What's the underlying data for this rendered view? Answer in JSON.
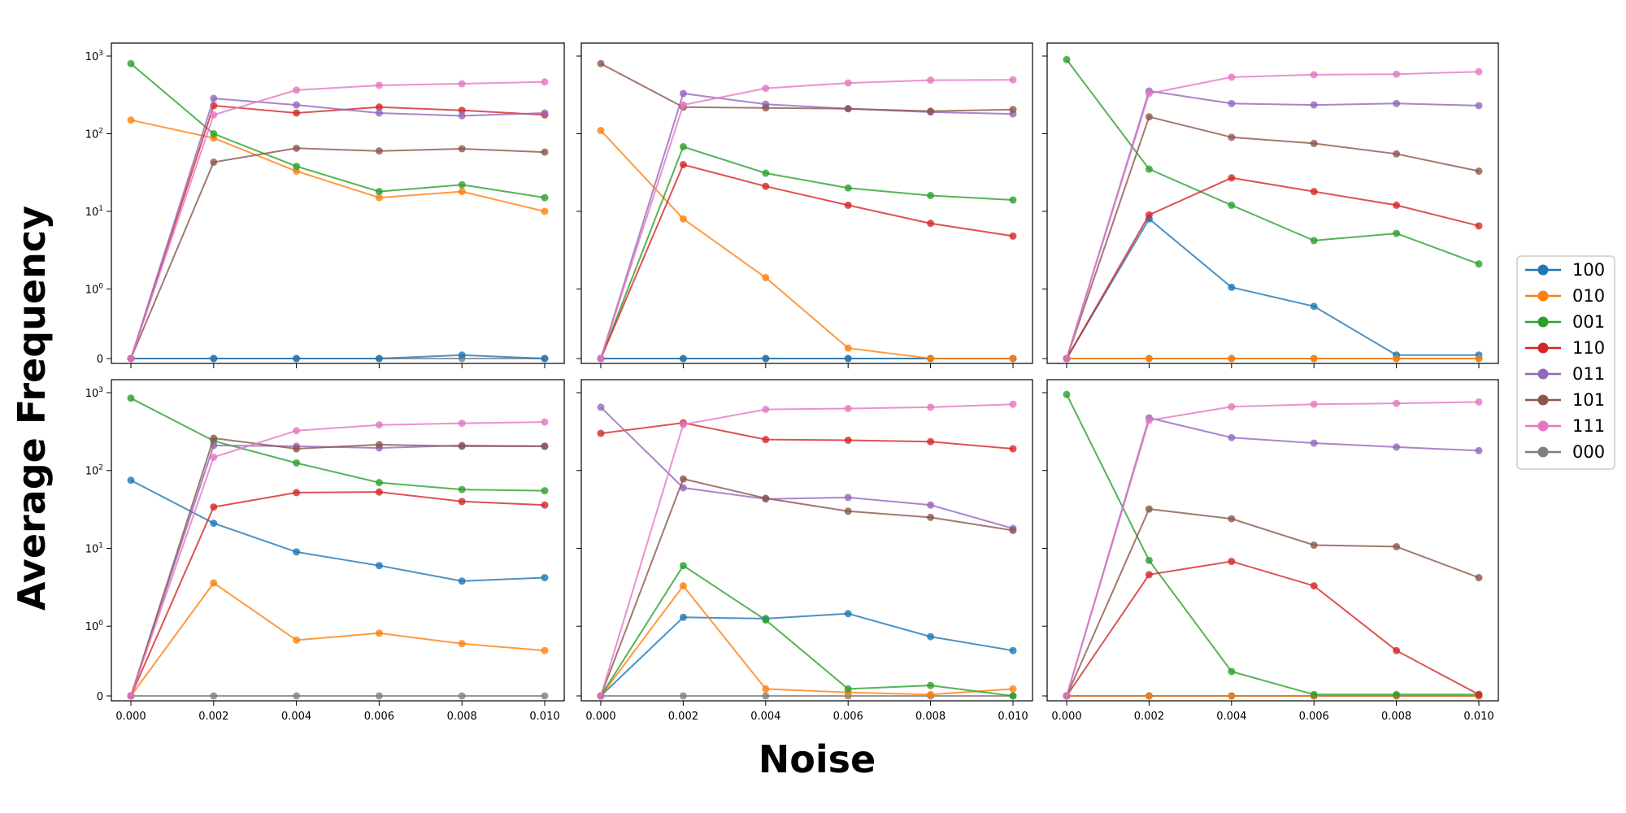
{
  "figure": {
    "ylabel": "Average Frequency",
    "xlabel": "Noise"
  },
  "chart_data": {
    "type": "line",
    "yscale": "symlog",
    "ylim": [
      0,
      1000
    ],
    "xlim": [
      0.0,
      0.01
    ],
    "x": [
      0.0,
      0.002,
      0.004,
      0.006,
      0.008,
      0.01
    ],
    "x_tick_labels": [
      "0.000",
      "0.002",
      "0.004",
      "0.006",
      "0.008",
      "0.010"
    ],
    "y_ticks": [
      {
        "value": 0,
        "base": "0",
        "exp": ""
      },
      {
        "value": 1,
        "base": "10",
        "exp": "0"
      },
      {
        "value": 10,
        "base": "10",
        "exp": "1"
      },
      {
        "value": 100,
        "base": "10",
        "exp": "2"
      },
      {
        "value": 1000,
        "base": "10",
        "exp": "3"
      }
    ],
    "grid": false,
    "legend": {
      "placement": "right",
      "entries": [
        {
          "name": "100",
          "color": "#1f77b4"
        },
        {
          "name": "010",
          "color": "#ff7f0e"
        },
        {
          "name": "001",
          "color": "#2ca02c"
        },
        {
          "name": "110",
          "color": "#d62728"
        },
        {
          "name": "011",
          "color": "#9467bd"
        },
        {
          "name": "101",
          "color": "#8c564b"
        },
        {
          "name": "111",
          "color": "#e377c2"
        },
        {
          "name": "000",
          "color": "#7f7f7f"
        }
      ]
    },
    "panels": [
      {
        "series": [
          {
            "name": "100",
            "values": [
              0,
              0,
              0,
              0,
              0.05,
              0
            ]
          },
          {
            "name": "010",
            "values": [
              150,
              88,
              33,
              15,
              18,
              10
            ]
          },
          {
            "name": "001",
            "values": [
              800,
              100,
              38,
              18,
              22,
              15
            ]
          },
          {
            "name": "110",
            "values": [
              0,
              230,
              185,
              220,
              200,
              175
            ]
          },
          {
            "name": "011",
            "values": [
              0,
              285,
              235,
              185,
              170,
              185
            ]
          },
          {
            "name": "101",
            "values": [
              0,
              43,
              65,
              60,
              64,
              58
            ]
          },
          {
            "name": "111",
            "values": [
              0,
              175,
              365,
              420,
              440,
              465
            ]
          },
          {
            "name": "000",
            "values": [
              0,
              0,
              0,
              0,
              0,
              0
            ]
          }
        ]
      },
      {
        "series": [
          {
            "name": "100",
            "values": [
              0,
              0,
              0,
              0,
              0,
              0
            ]
          },
          {
            "name": "010",
            "values": [
              110,
              8,
              1.4,
              0.15,
              0,
              0
            ]
          },
          {
            "name": "001",
            "values": [
              0,
              68,
              31,
              20,
              16,
              14
            ]
          },
          {
            "name": "110",
            "values": [
              0,
              40,
              21,
              12,
              7,
              4.8
            ]
          },
          {
            "name": "011",
            "values": [
              0,
              330,
              240,
              210,
              190,
              180
            ]
          },
          {
            "name": "101",
            "values": [
              800,
              220,
              215,
              210,
              195,
              205
            ]
          },
          {
            "name": "111",
            "values": [
              0,
              235,
              385,
              450,
              490,
              495
            ]
          },
          {
            "name": "000",
            "values": [
              0,
              0,
              0,
              0,
              0,
              0
            ]
          }
        ]
      },
      {
        "series": [
          {
            "name": "100",
            "values": [
              0,
              8,
              1.05,
              0.75,
              0.05,
              0.05
            ]
          },
          {
            "name": "010",
            "values": [
              0,
              0,
              0,
              0,
              0,
              0
            ]
          },
          {
            "name": "001",
            "values": [
              900,
              35,
              12,
              4.2,
              5.2,
              2.1
            ]
          },
          {
            "name": "110",
            "values": [
              0,
              9,
              27,
              18,
              12,
              6.5
            ]
          },
          {
            "name": "011",
            "values": [
              0,
              355,
              245,
              235,
              245,
              230
            ]
          },
          {
            "name": "101",
            "values": [
              0,
              165,
              90,
              75,
              55,
              33
            ]
          },
          {
            "name": "111",
            "values": [
              0,
              330,
              535,
              575,
              585,
              630
            ]
          },
          {
            "name": "000",
            "values": [
              0,
              0,
              0,
              0,
              0,
              0
            ]
          }
        ]
      },
      {
        "series": [
          {
            "name": "100",
            "values": [
              75,
              21,
              9,
              6,
              3.8,
              4.2
            ]
          },
          {
            "name": "010",
            "values": [
              0,
              3.6,
              0.8,
              0.9,
              0.75,
              0.65
            ]
          },
          {
            "name": "001",
            "values": [
              850,
              240,
              125,
              70,
              57,
              55
            ]
          },
          {
            "name": "110",
            "values": [
              0,
              34,
              52,
              53,
              40,
              36
            ]
          },
          {
            "name": "011",
            "values": [
              0,
              210,
              205,
              195,
              210,
              205
            ]
          },
          {
            "name": "101",
            "values": [
              0,
              260,
              190,
              215,
              205,
              205
            ]
          },
          {
            "name": "111",
            "values": [
              0,
              148,
              325,
              385,
              405,
              420
            ]
          },
          {
            "name": "000",
            "values": [
              0,
              0,
              0,
              0,
              0,
              0
            ]
          }
        ]
      },
      {
        "series": [
          {
            "name": "100",
            "values": [
              0,
              1.3,
              1.25,
              1.45,
              0.85,
              0.65
            ]
          },
          {
            "name": "010",
            "values": [
              0,
              3.3,
              0.1,
              0.05,
              0.02,
              0.1
            ]
          },
          {
            "name": "001",
            "values": [
              0,
              6,
              1.2,
              0.1,
              0.15,
              0
            ]
          },
          {
            "name": "110",
            "values": [
              300,
              410,
              250,
              245,
              235,
              190
            ]
          },
          {
            "name": "011",
            "values": [
              650,
              60,
              43,
              45,
              36,
              18
            ]
          },
          {
            "name": "101",
            "values": [
              0,
              78,
              44,
              30,
              25,
              17
            ]
          },
          {
            "name": "111",
            "values": [
              0,
              390,
              610,
              625,
              650,
              710
            ]
          },
          {
            "name": "000",
            "values": [
              0,
              0,
              0,
              0,
              0,
              0
            ]
          }
        ]
      },
      {
        "series": [
          {
            "name": "100",
            "values": [
              0,
              0,
              0,
              0,
              0,
              0
            ]
          },
          {
            "name": "010",
            "values": [
              0,
              0,
              0,
              0,
              0,
              0
            ]
          },
          {
            "name": "001",
            "values": [
              950,
              7,
              0.35,
              0.02,
              0.02,
              0.02
            ]
          },
          {
            "name": "110",
            "values": [
              0,
              4.6,
              6.8,
              3.3,
              0.65,
              0.02
            ]
          },
          {
            "name": "011",
            "values": [
              0,
              475,
              265,
              225,
              200,
              180
            ]
          },
          {
            "name": "101",
            "values": [
              0,
              32,
              24,
              11,
              10.5,
              4.2
            ]
          },
          {
            "name": "111",
            "values": [
              0,
              440,
              660,
              710,
              730,
              760
            ]
          },
          {
            "name": "000",
            "values": [
              0,
              0,
              0,
              0,
              0,
              0
            ]
          }
        ]
      }
    ]
  }
}
